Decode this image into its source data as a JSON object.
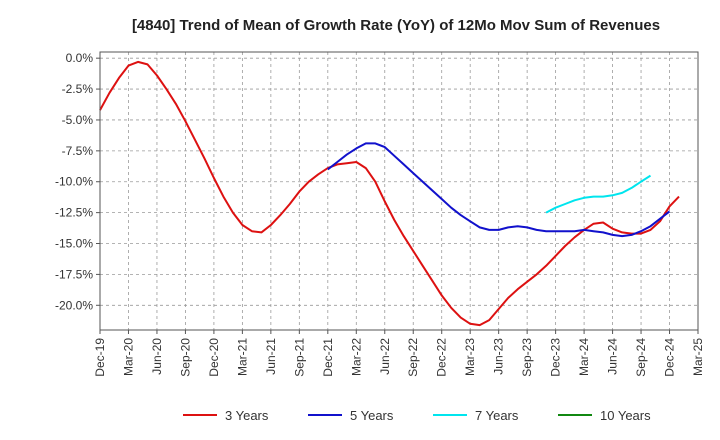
{
  "chart_data": {
    "type": "line",
    "title": "[4840]  Trend of Mean of Growth Rate (YoY) of 12Mo Mov Sum of Revenues",
    "xlabel": "",
    "ylabel": "",
    "ylim": [
      -22.0,
      0.5
    ],
    "yticks": [
      0.0,
      -2.5,
      -5.0,
      -7.5,
      -10.0,
      -12.5,
      -15.0,
      -17.5,
      -20.0
    ],
    "ytick_labels": [
      "0.0%",
      "-2.5%",
      "-5.0%",
      "-7.5%",
      "-10.0%",
      "-12.5%",
      "-15.0%",
      "-17.5%",
      "-20.0%"
    ],
    "xlim": [
      "2019-12",
      "2025-03"
    ],
    "xticks": [
      "Dec-19",
      "Mar-20",
      "Jun-20",
      "Sep-20",
      "Dec-20",
      "Mar-21",
      "Jun-21",
      "Sep-21",
      "Dec-21",
      "Mar-22",
      "Jun-22",
      "Sep-22",
      "Dec-22",
      "Mar-23",
      "Jun-23",
      "Sep-23",
      "Dec-23",
      "Mar-24",
      "Jun-24",
      "Sep-24",
      "Dec-24",
      "Mar-25"
    ],
    "grid": true,
    "legend_position": "bottom",
    "series": [
      {
        "name": "3 Years",
        "color": "#dd1111",
        "start": "2019-12",
        "values": [
          -4.2,
          -2.8,
          -1.6,
          -0.6,
          -0.3,
          -0.5,
          -1.4,
          -2.5,
          -3.7,
          -5.1,
          -6.6,
          -8.1,
          -9.7,
          -11.2,
          -12.5,
          -13.5,
          -14.0,
          -14.1,
          -13.5,
          -12.7,
          -11.8,
          -10.8,
          -10.0,
          -9.4,
          -8.9,
          -8.6,
          -8.5,
          -8.4,
          -8.9,
          -10.0,
          -11.6,
          -13.1,
          -14.4,
          -15.6,
          -16.8,
          -18.0,
          -19.2,
          -20.2,
          -21.0,
          -21.5,
          -21.6,
          -21.2,
          -20.3,
          -19.4,
          -18.7,
          -18.1,
          -17.5,
          -16.8,
          -16.0,
          -15.2,
          -14.5,
          -13.9,
          -13.4,
          -13.3,
          -13.8,
          -14.1,
          -14.2,
          -14.2,
          -13.9,
          -13.2,
          -12.0,
          -11.2
        ]
      },
      {
        "name": "5 Years",
        "color": "#1111cc",
        "start": "2021-12",
        "values": [
          -9.0,
          -8.4,
          -7.8,
          -7.3,
          -6.9,
          -6.9,
          -7.2,
          -7.9,
          -8.6,
          -9.3,
          -10.0,
          -10.7,
          -11.4,
          -12.1,
          -12.7,
          -13.2,
          -13.7,
          -13.9,
          -13.9,
          -13.7,
          -13.6,
          -13.7,
          -13.9,
          -14.0,
          -14.0,
          -14.0,
          -14.0,
          -13.9,
          -14.0,
          -14.1,
          -14.3,
          -14.4,
          -14.3,
          -14.0,
          -13.6,
          -13.0,
          -12.4
        ]
      },
      {
        "name": "7 Years",
        "color": "#00e5ee",
        "start": "2023-11",
        "values": [
          -12.5,
          -12.1,
          -11.8,
          -11.5,
          -11.3,
          -11.2,
          -11.2,
          -11.1,
          -10.9,
          -10.5,
          -10.0,
          -9.5
        ]
      },
      {
        "name": "10 Years",
        "color": "#118811",
        "start": "2024-12",
        "values": []
      }
    ]
  }
}
